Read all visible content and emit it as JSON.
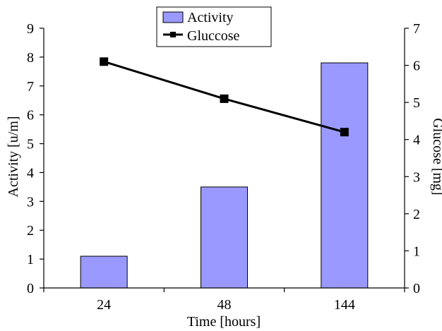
{
  "chart_data": {
    "type": "bar",
    "categories": [
      "24",
      "48",
      "144"
    ],
    "series": [
      {
        "name": "Activity",
        "type": "bar",
        "axis": "left",
        "values": [
          1.1,
          3.5,
          7.8
        ]
      },
      {
        "name": "Gluccose",
        "type": "line",
        "axis": "right",
        "values": [
          6.1,
          5.1,
          4.2
        ]
      }
    ],
    "xlabel": "Time [hours]",
    "ylabel": "Activity [u/m]",
    "y2label": "Glucose [mg]",
    "ylim": [
      0,
      9
    ],
    "y2lim": [
      0,
      7
    ],
    "yticks": [
      "0",
      "1",
      "2",
      "3",
      "4",
      "5",
      "6",
      "7",
      "8",
      "9"
    ],
    "y2ticks": [
      "0",
      "1",
      "2",
      "3",
      "4",
      "5",
      "6",
      "7"
    ],
    "grid": false,
    "legend": "top-center",
    "colors": {
      "bar_fill": "#9999ff",
      "bar_stroke": "#000000",
      "line": "#000000",
      "marker": "#000000"
    }
  }
}
